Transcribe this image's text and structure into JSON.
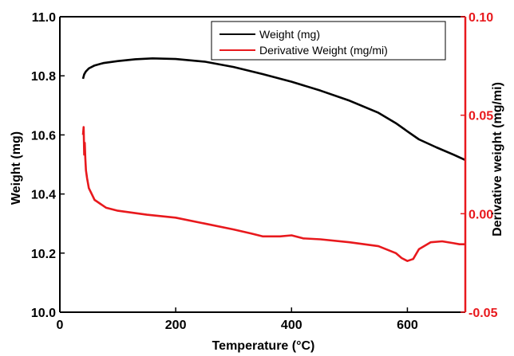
{
  "colors": {
    "weight": "#000000",
    "derivative": "#e8191d",
    "axis_left": "#000000",
    "axis_right": "#e8191d"
  },
  "chart_data": {
    "type": "line",
    "title": "",
    "xlabel": "Temperature (°C)",
    "ylabel": "Weight (mg)",
    "y2label": "Derivative weight (mg/mi)",
    "xlim": [
      0,
      700
    ],
    "ylim": [
      10.0,
      11.0
    ],
    "y2lim": [
      -0.05,
      0.1
    ],
    "x_ticks": [
      0,
      200,
      400,
      600
    ],
    "y_ticks": [
      10.0,
      10.2,
      10.4,
      10.6,
      10.8,
      11.0
    ],
    "y_tick_labels": [
      "10.0",
      "10.2",
      "10.4",
      "10.6",
      "10.8",
      "11.0"
    ],
    "y2_ticks": [
      -0.05,
      0.0,
      0.05,
      0.1
    ],
    "y2_tick_labels": [
      "-0.05",
      "0.00",
      "0.05",
      "0.10"
    ],
    "grid": false,
    "legend_position": "top-right",
    "series": [
      {
        "name": "Weight (mg)",
        "axis": "left",
        "x": [
          40,
          42,
          45,
          50,
          60,
          75,
          100,
          130,
          160,
          200,
          250,
          300,
          350,
          400,
          450,
          500,
          550,
          580,
          600,
          620,
          650,
          680,
          700
        ],
        "y": [
          10.79,
          10.805,
          10.815,
          10.825,
          10.835,
          10.843,
          10.85,
          10.856,
          10.859,
          10.857,
          10.848,
          10.83,
          10.806,
          10.78,
          10.75,
          10.716,
          10.675,
          10.64,
          10.612,
          10.585,
          10.558,
          10.533,
          10.515
        ]
      },
      {
        "name": "Derivative Weight (mg/mi)",
        "axis": "right",
        "x": [
          40,
          41,
          42,
          43,
          44,
          45,
          47,
          50,
          55,
          60,
          70,
          80,
          100,
          150,
          200,
          250,
          300,
          330,
          350,
          380,
          400,
          420,
          450,
          500,
          550,
          580,
          590,
          600,
          610,
          620,
          640,
          660,
          680,
          690,
          700
        ],
        "y": [
          0.04,
          0.044,
          0.03,
          0.036,
          0.028,
          0.022,
          0.018,
          0.013,
          0.01,
          0.007,
          0.005,
          0.003,
          0.0015,
          -0.0005,
          -0.002,
          -0.005,
          -0.008,
          -0.01,
          -0.0115,
          -0.0115,
          -0.011,
          -0.0125,
          -0.013,
          -0.0145,
          -0.0165,
          -0.02,
          -0.0225,
          -0.024,
          -0.023,
          -0.018,
          -0.0145,
          -0.014,
          -0.015,
          -0.0155,
          -0.0155
        ]
      }
    ]
  }
}
